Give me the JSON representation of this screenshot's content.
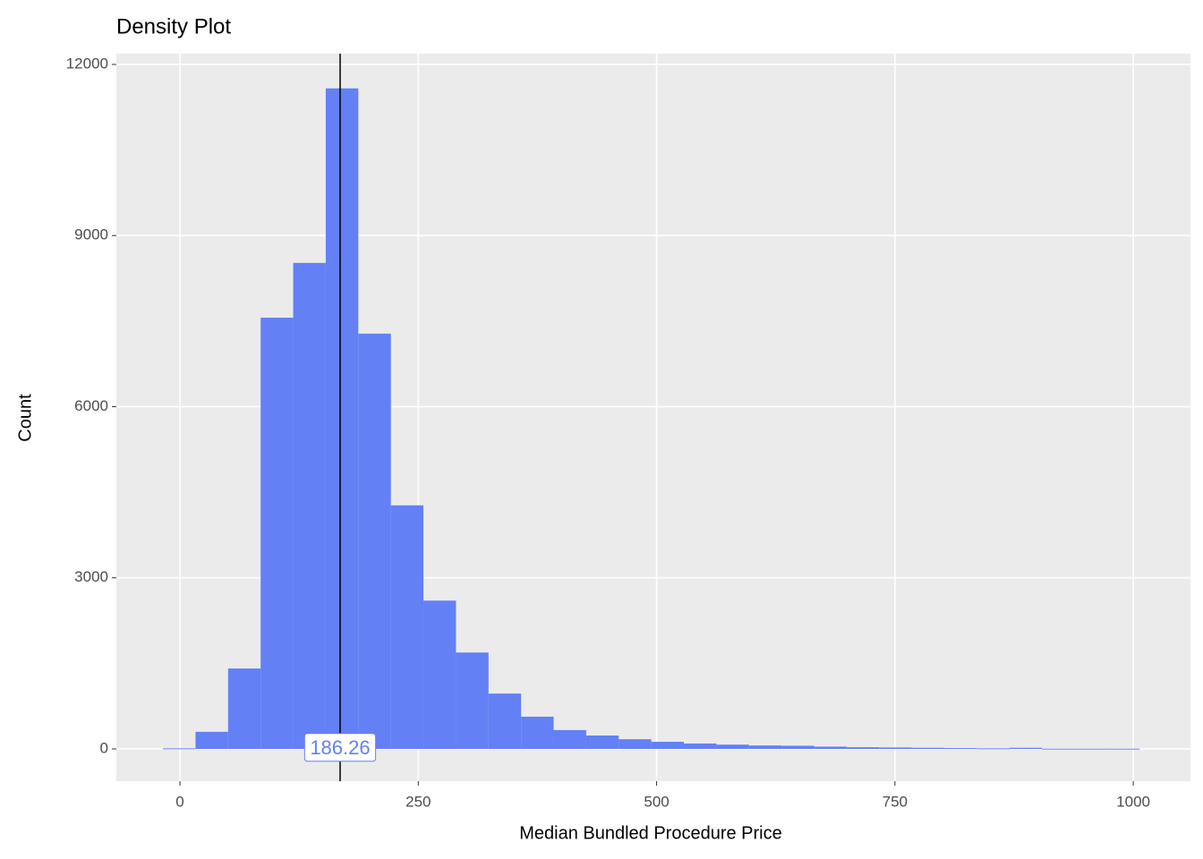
{
  "chart_data": {
    "type": "histogram",
    "title": "Density Plot",
    "x_label": "Median Bundled Procedure Price",
    "y_label": "Count",
    "bins": [
      -17.8,
      16.35,
      50.5,
      84.65,
      118.8,
      152.95,
      187.1,
      221.25,
      255.4,
      289.55,
      323.7,
      357.85,
      392,
      426.15,
      460.3,
      494.45,
      528.6,
      562.75,
      596.9,
      631.05,
      665.2,
      699.35,
      733.5,
      767.65,
      801.8,
      835.95,
      870.1,
      904.25,
      938.4,
      972.55,
      1006.7
    ],
    "values": [
      10,
      300,
      1410,
      7560,
      8520,
      11580,
      7280,
      4270,
      2600,
      1690,
      970,
      565,
      330,
      235,
      170,
      125,
      95,
      75,
      60,
      55,
      40,
      30,
      25,
      20,
      15,
      10,
      20,
      5,
      5,
      5
    ],
    "color": "#6380f5",
    "xlim": [
      -66.7,
      1060
    ],
    "ylim": [
      -565,
      12188
    ],
    "xticks": [
      0,
      250,
      500,
      750,
      1000
    ],
    "yticks": [
      0,
      3000,
      6000,
      9000,
      12000
    ],
    "grid": true,
    "vline": 168,
    "vline_color": "#000000",
    "annotation": "186.26"
  }
}
